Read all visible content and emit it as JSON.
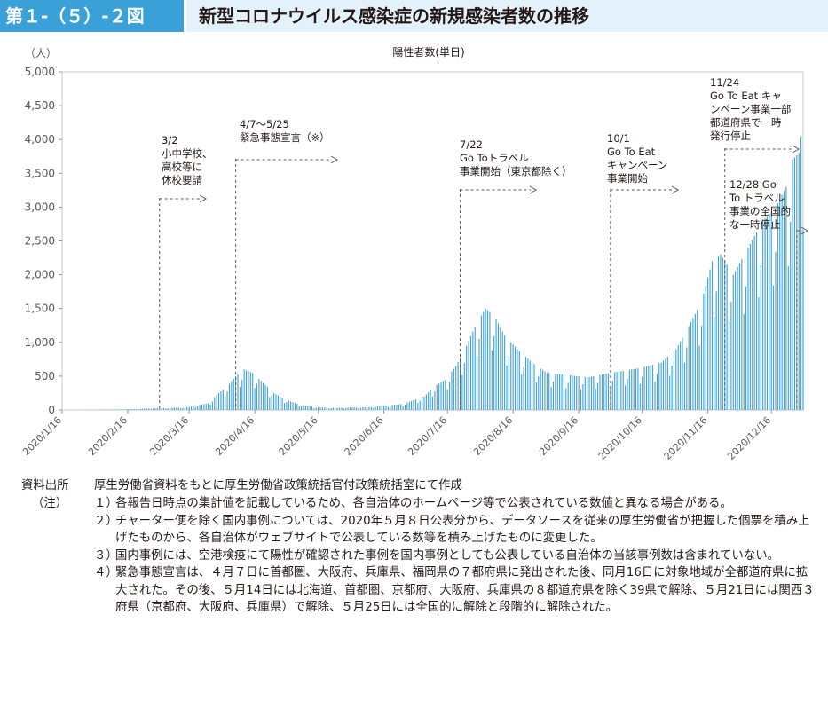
{
  "header": {
    "figure_number": "第１-（５）-２図",
    "title": "新型コロナウイルス感染症の新規感染者数の推移"
  },
  "chart_data": {
    "type": "bar",
    "title": "陽性者数(単日)",
    "ylabel": "（人）",
    "xlabel": "",
    "ylim": [
      0,
      5000
    ],
    "yticks": [
      0,
      500,
      1000,
      1500,
      2000,
      2500,
      3000,
      3500,
      4000,
      4500,
      5000
    ],
    "ytick_labels": [
      "0",
      "500",
      "1,000",
      "1,500",
      "2,000",
      "2,500",
      "3,000",
      "3,500",
      "4,000",
      "4,500",
      "5,000"
    ],
    "x_start": "2020/1/16",
    "x_end": "2020/12/31",
    "xtick_labels": [
      "2020/1/16",
      "2020/2/16",
      "2020/3/16",
      "2020/4/16",
      "2020/5/16",
      "2020/6/16",
      "2020/7/16",
      "2020/8/16",
      "2020/9/16",
      "2020/10/16",
      "2020/11/16",
      "2020/12/16"
    ],
    "series": [
      {
        "name": "陽性者数(単日)",
        "color": "#3aa0d8",
        "x": [
          "2020/1/16",
          "2020/2/1",
          "2020/2/15",
          "2020/3/1",
          "2020/3/15",
          "2020/3/25",
          "2020/3/30",
          "2020/4/3",
          "2020/4/7",
          "2020/4/11",
          "2020/4/15",
          "2020/4/20",
          "2020/4/25",
          "2020/5/1",
          "2020/5/7",
          "2020/5/15",
          "2020/5/25",
          "2020/6/10",
          "2020/6/25",
          "2020/7/5",
          "2020/7/10",
          "2020/7/15",
          "2020/7/20",
          "2020/7/25",
          "2020/7/30",
          "2020/8/3",
          "2020/8/7",
          "2020/8/12",
          "2020/8/18",
          "2020/8/25",
          "2020/9/1",
          "2020/9/10",
          "2020/9/20",
          "2020/10/1",
          "2020/10/15",
          "2020/10/25",
          "2020/11/1",
          "2020/11/8",
          "2020/11/13",
          "2020/11/18",
          "2020/11/22",
          "2020/11/28",
          "2020/12/5",
          "2020/12/12",
          "2020/12/18",
          "2020/12/23",
          "2020/12/26",
          "2020/12/29",
          "2020/12/31"
        ],
        "y": [
          1,
          4,
          10,
          25,
          40,
          100,
          250,
          350,
          500,
          600,
          550,
          400,
          250,
          150,
          80,
          40,
          30,
          45,
          90,
          200,
          350,
          450,
          650,
          950,
          1300,
          1500,
          1400,
          1100,
          900,
          700,
          550,
          520,
          480,
          550,
          620,
          700,
          900,
          1300,
          1600,
          2200,
          2300,
          2000,
          2400,
          2800,
          3000,
          3300,
          3700,
          3800,
          4300
        ]
      }
    ],
    "annotations": [
      {
        "date": "2020/3/2",
        "lines": [
          "3/2",
          "小中学校、",
          "高校等に",
          "休校要請"
        ]
      },
      {
        "date": "2020/4/7",
        "lines": [
          "4/7～5/25",
          "緊急事態宣言（※）"
        ]
      },
      {
        "date": "2020/7/22",
        "lines": [
          "7/22",
          "Go Toトラベル",
          "事業開始（東京都除く）"
        ]
      },
      {
        "date": "2020/10/1",
        "lines": [
          "10/1",
          "Go To Eat",
          "キャンペーン",
          "事業開始"
        ]
      },
      {
        "date": "2020/11/24",
        "lines": [
          "11/24",
          "Go To Eat キャ",
          "ンペーン事業一部",
          "都道府県で一時",
          "発行停止"
        ]
      },
      {
        "date": "2020/12/28",
        "lines": [
          "12/28 Go",
          "To トラベル",
          "事業の全国的",
          "な一時停止"
        ]
      }
    ]
  },
  "notes": {
    "source_label": "資料出所",
    "source_text": "厚生労働省資料をもとに厚生労働省政策統括官付政策統括室にて作成",
    "note_label": "（注）",
    "items": [
      {
        "num": "１）",
        "text": "各報告日時点の集計値を記載しているため、各自治体のホームページ等で公表されている数値と異なる場合がある。"
      },
      {
        "num": "２）",
        "text": "チャーター便を除く国内事例については、2020年５月８日公表分から、データソースを従来の厚生労働省が把握した個票を積み上げたものから、各自治体がウェブサイトで公表している数等を積み上げたものに変更した。"
      },
      {
        "num": "３）",
        "text": "国内事例には、空港検疫にて陽性が確認された事例を国内事例としても公表している自治体の当該事例数は含まれていない。"
      },
      {
        "num": "４）",
        "text": "緊急事態宣言は、４月７日に首都圏、大阪府、兵庫県、福岡県の７都府県に発出された後、同月16日に対象地域が全都道府県に拡大された。その後、５月14日には北海道、首都圏、京都府、大阪府、兵庫県の８都道府県を除く39県で解除、５月21日には関西３府県（京都府、大阪府、兵庫県）で解除、５月25日には全国的に解除と段階的に解除された。"
      }
    ]
  }
}
